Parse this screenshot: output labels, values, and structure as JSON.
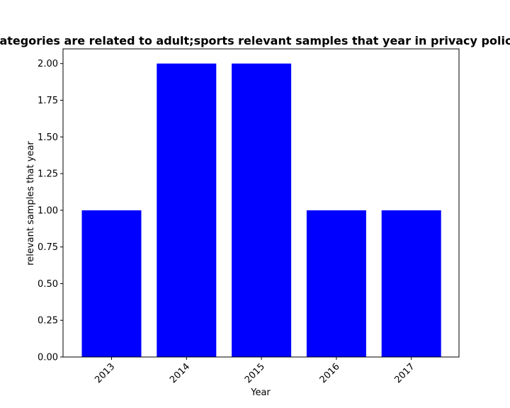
{
  "chart_data": {
    "type": "bar",
    "title": "Categories are related to adult;sports relevant samples that year in privacy policies",
    "xlabel": "Year",
    "ylabel": "relevant samples that year",
    "categories": [
      "2013",
      "2014",
      "2015",
      "2016",
      "2017"
    ],
    "values": [
      1,
      2,
      2,
      1,
      1
    ],
    "ylim": [
      0,
      2.1
    ],
    "yticks": [
      "0.00",
      "0.25",
      "0.50",
      "0.75",
      "1.00",
      "1.25",
      "1.50",
      "1.75",
      "2.00"
    ],
    "bar_color": "#0000ff",
    "grid": false,
    "legend": "none"
  }
}
